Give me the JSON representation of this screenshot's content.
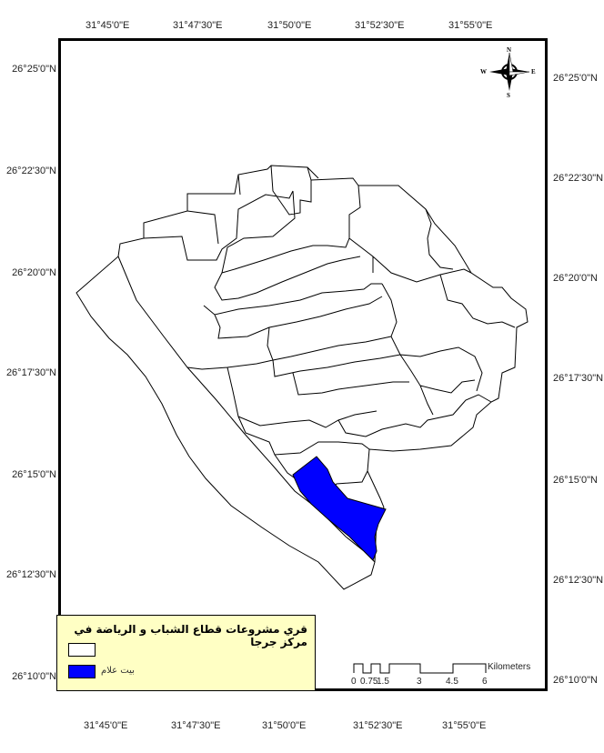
{
  "legend": {
    "title": "قري مشروعات قطاع الشباب و الرياضة في مركز جرجا",
    "items": [
      {
        "label": "",
        "color": "#ffffff"
      },
      {
        "label": "بيت علام",
        "color": "#0000ff"
      }
    ]
  },
  "axes": {
    "lon_top": [
      "31°45'0\"E",
      "31°47'30\"E",
      "31°50'0\"E",
      "31°52'30\"E",
      "31°55'0\"E"
    ],
    "lon_bottom": [
      "31°45'0\"E",
      "31°47'30\"E",
      "31°50'0\"E",
      "31°52'30\"E",
      "31°55'0\"E"
    ],
    "lat_left": [
      "26°25'0\"N",
      "26°22'30\"N",
      "26°20'0\"N",
      "26°17'30\"N",
      "26°15'0\"N",
      "26°12'30\"N",
      "26°10'0\"N"
    ],
    "lat_right": [
      "26°25'0\"N",
      "26°22'30\"N",
      "26°20'0\"N",
      "26°17'30\"N",
      "26°15'0\"N",
      "26°12'30\"N",
      "26°10'0\"N"
    ]
  },
  "scale": {
    "unit": "Kilometers",
    "ticks": [
      "0",
      "0.75",
      "1.5",
      "3",
      "4.5",
      "6"
    ]
  },
  "north_arrow": {
    "n": "N",
    "s": "S",
    "e": "E",
    "w": "W"
  },
  "colors": {
    "highlight": "#0000ff",
    "legend_bg": "#ffffc4",
    "boundary": "#000000"
  }
}
